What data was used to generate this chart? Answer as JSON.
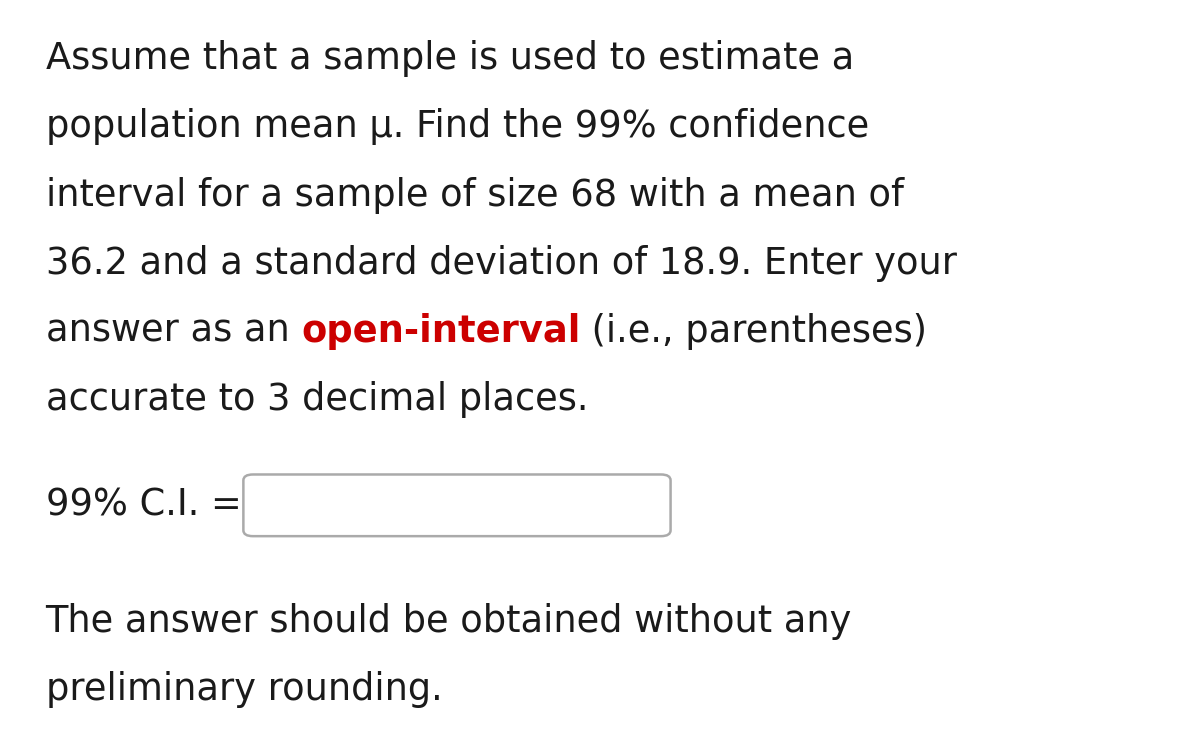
{
  "background_color": "#ffffff",
  "text_color": "#1a1a1a",
  "red_color": "#cc0000",
  "fig_width": 12.0,
  "fig_height": 7.33,
  "font_size": 26.5,
  "line1": "Assume that a sample is used to estimate a",
  "line2": "population mean μ. Find the 99% confidence",
  "line3": "interval for a sample of size 68 with a mean of",
  "line4": "36.2 and a standard deviation of 18.9. Enter your",
  "line5_part1": "answer as an ",
  "line5_red": "open-interval",
  "line5_part2": " (i.e., parentheses)",
  "line6": "accurate to 3 decimal places.",
  "label_text": "99% C.I. = ",
  "footer_line1": "The answer should be obtained without any",
  "footer_line2": "preliminary rounding."
}
